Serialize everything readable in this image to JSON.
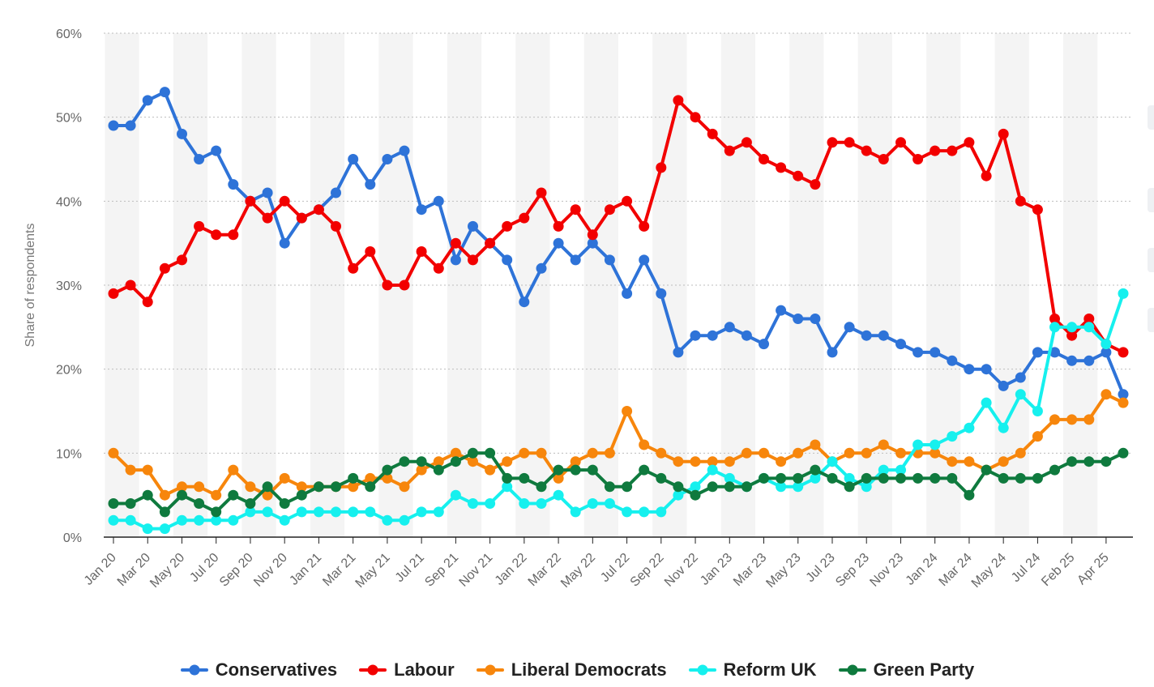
{
  "chart_data": {
    "type": "line",
    "title": "",
    "xlabel": "",
    "ylabel": "Share of respondents",
    "ylim": [
      0,
      60
    ],
    "yticks": [
      "0%",
      "10%",
      "20%",
      "30%",
      "40%",
      "50%",
      "60%"
    ],
    "x_tick_labels": [
      "Jan 20",
      "Mar 20",
      "May 20",
      "Jul 20",
      "Sep 20",
      "Nov 20",
      "Jan 21",
      "Mar 21",
      "May 21",
      "Jul 21",
      "Sep 21",
      "Nov 21",
      "Jan 22",
      "Mar 22",
      "May 22",
      "Jul 22",
      "Sep 22",
      "Nov 22",
      "Jan 23",
      "Mar 23",
      "May 23",
      "Jul 23",
      "Sep 23",
      "Nov 23",
      "Jan 24",
      "Mar 24",
      "May 24",
      "Jul 24",
      "Feb 25",
      "Apr 25"
    ],
    "legend_position": "bottom",
    "series": [
      {
        "name": "Conservatives",
        "color": "#2e73d8",
        "values": [
          49,
          49,
          52,
          53,
          48,
          45,
          46,
          42,
          40,
          41,
          35,
          38,
          39,
          41,
          45,
          42,
          45,
          46,
          39,
          40,
          33,
          37,
          35,
          33,
          28,
          32,
          35,
          33,
          35,
          33,
          29,
          33,
          29,
          22,
          24,
          24,
          25,
          24,
          23,
          27,
          26,
          26,
          22,
          25,
          24,
          24,
          23,
          22,
          22,
          21,
          20,
          20,
          18,
          19,
          22,
          22,
          21,
          21,
          22,
          17
        ]
      },
      {
        "name": "Labour",
        "color": "#f20000",
        "values": [
          29,
          30,
          28,
          32,
          33,
          37,
          36,
          36,
          40,
          38,
          40,
          38,
          39,
          37,
          32,
          34,
          30,
          30,
          34,
          32,
          35,
          33,
          35,
          37,
          38,
          41,
          37,
          39,
          36,
          39,
          40,
          37,
          44,
          52,
          50,
          48,
          46,
          47,
          45,
          44,
          43,
          42,
          47,
          47,
          46,
          45,
          47,
          45,
          46,
          46,
          47,
          43,
          48,
          40,
          39,
          26,
          24,
          26,
          23,
          22
        ]
      },
      {
        "name": "Liberal Democrats",
        "color": "#f7860c",
        "values": [
          10,
          8,
          8,
          5,
          6,
          6,
          5,
          8,
          6,
          5,
          7,
          6,
          6,
          6,
          6,
          7,
          7,
          6,
          8,
          9,
          10,
          9,
          8,
          9,
          10,
          10,
          7,
          9,
          10,
          10,
          15,
          11,
          10,
          9,
          9,
          9,
          9,
          10,
          10,
          9,
          10,
          11,
          9,
          10,
          10,
          11,
          10,
          10,
          10,
          9,
          9,
          8,
          9,
          10,
          12,
          14,
          14,
          14,
          17,
          16
        ]
      },
      {
        "name": "Reform UK",
        "color": "#16f0ee",
        "values": [
          2,
          2,
          1,
          1,
          2,
          2,
          2,
          2,
          3,
          3,
          2,
          3,
          3,
          3,
          3,
          3,
          2,
          2,
          3,
          3,
          5,
          4,
          4,
          6,
          4,
          4,
          5,
          3,
          4,
          4,
          3,
          3,
          3,
          5,
          6,
          8,
          7,
          6,
          7,
          6,
          6,
          7,
          9,
          7,
          6,
          8,
          8,
          11,
          11,
          12,
          13,
          16,
          13,
          17,
          15,
          25,
          25,
          25,
          23,
          29
        ]
      },
      {
        "name": "Green Party",
        "color": "#0f7a3e",
        "values": [
          4,
          4,
          5,
          3,
          5,
          4,
          3,
          5,
          4,
          6,
          4,
          5,
          6,
          6,
          7,
          6,
          8,
          9,
          9,
          8,
          9,
          10,
          10,
          7,
          7,
          6,
          8,
          8,
          8,
          6,
          6,
          8,
          7,
          6,
          5,
          6,
          6,
          6,
          7,
          7,
          7,
          8,
          7,
          6,
          7,
          7,
          7,
          7,
          7,
          7,
          5,
          8,
          7,
          7,
          7,
          8,
          9,
          9,
          9,
          10
        ]
      }
    ]
  }
}
